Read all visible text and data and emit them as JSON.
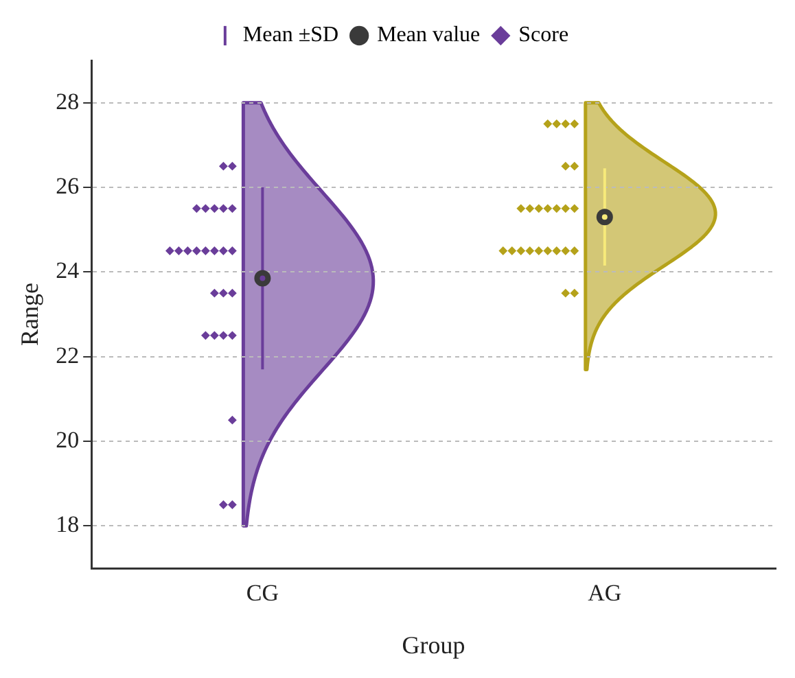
{
  "chart_data": {
    "type": "scatter",
    "xlabel": "Group",
    "ylabel": "Range",
    "categories": [
      "CG",
      "AG"
    ],
    "ylim": [
      17,
      29
    ],
    "yticks": [
      18,
      20,
      22,
      24,
      26,
      28
    ],
    "grid": "y",
    "legend": "top",
    "series": [
      {
        "name": "Mean ±SD",
        "marker": "circle",
        "x": [
          "CG",
          "AG"
        ],
        "values": [
          23.85,
          25.3
        ],
        "errors": [
          2.15,
          1.15
        ],
        "colors": [
          "#6a3d9a",
          "#f7ea7a"
        ]
      },
      {
        "name": "Mean value",
        "marker": "circle",
        "x": [
          "CG",
          "AG"
        ],
        "values": [
          23.85,
          25.3
        ],
        "color": "#3a3a3a"
      },
      {
        "name": "Score",
        "marker": "diamond",
        "x": [
          "CG",
          "CG",
          "CG",
          "CG",
          "CG",
          "CG",
          "CG",
          "CG",
          "CG",
          "CG",
          "CG",
          "CG",
          "CG",
          "CG",
          "CG",
          "CG",
          "CG",
          "CG",
          "CG",
          "CG",
          "CG",
          "CG",
          "CG",
          "CG",
          "CG",
          "AG",
          "AG",
          "AG",
          "AG",
          "AG",
          "AG",
          "AG",
          "AG",
          "AG",
          "AG",
          "AG",
          "AG",
          "AG",
          "AG",
          "AG",
          "AG",
          "AG",
          "AG",
          "AG",
          "AG",
          "AG",
          "AG",
          "AG",
          "AG"
        ],
        "values": [
          26.5,
          26.5,
          25.5,
          25.5,
          25.5,
          25.5,
          25.5,
          24.5,
          24.5,
          24.5,
          24.5,
          24.5,
          24.5,
          24.5,
          24.5,
          23.5,
          23.5,
          23.5,
          22.5,
          22.5,
          22.5,
          22.5,
          20.5,
          18.5,
          18.5,
          27.5,
          27.5,
          27.5,
          27.5,
          26.5,
          26.5,
          25.5,
          25.5,
          25.5,
          25.5,
          25.5,
          25.5,
          25.5,
          24.5,
          24.5,
          24.5,
          24.5,
          24.5,
          24.5,
          24.5,
          24.5,
          24.5,
          23.5,
          23.5
        ],
        "colors": [
          "#6a3d9a",
          "#6a3d9a",
          "#6a3d9a",
          "#6a3d9a",
          "#6a3d9a",
          "#6a3d9a",
          "#6a3d9a",
          "#6a3d9a",
          "#6a3d9a",
          "#6a3d9a",
          "#6a3d9a",
          "#6a3d9a",
          "#6a3d9a",
          "#6a3d9a",
          "#6a3d9a",
          "#6a3d9a",
          "#6a3d9a",
          "#6a3d9a",
          "#6a3d9a",
          "#6a3d9a",
          "#6a3d9a",
          "#6a3d9a",
          "#6a3d9a",
          "#6a3d9a",
          "#6a3d9a",
          "#b5a21a",
          "#b5a21a",
          "#b5a21a",
          "#b5a21a",
          "#b5a21a",
          "#b5a21a",
          "#b5a21a",
          "#b5a21a",
          "#b5a21a",
          "#b5a21a",
          "#b5a21a",
          "#b5a21a",
          "#b5a21a",
          "#b5a21a",
          "#b5a21a",
          "#b5a21a",
          "#b5a21a",
          "#b5a21a",
          "#b5a21a",
          "#b5a21a",
          "#b5a21a",
          "#b5a21a",
          "#b5a21a",
          "#b5a21a"
        ]
      }
    ]
  }
}
